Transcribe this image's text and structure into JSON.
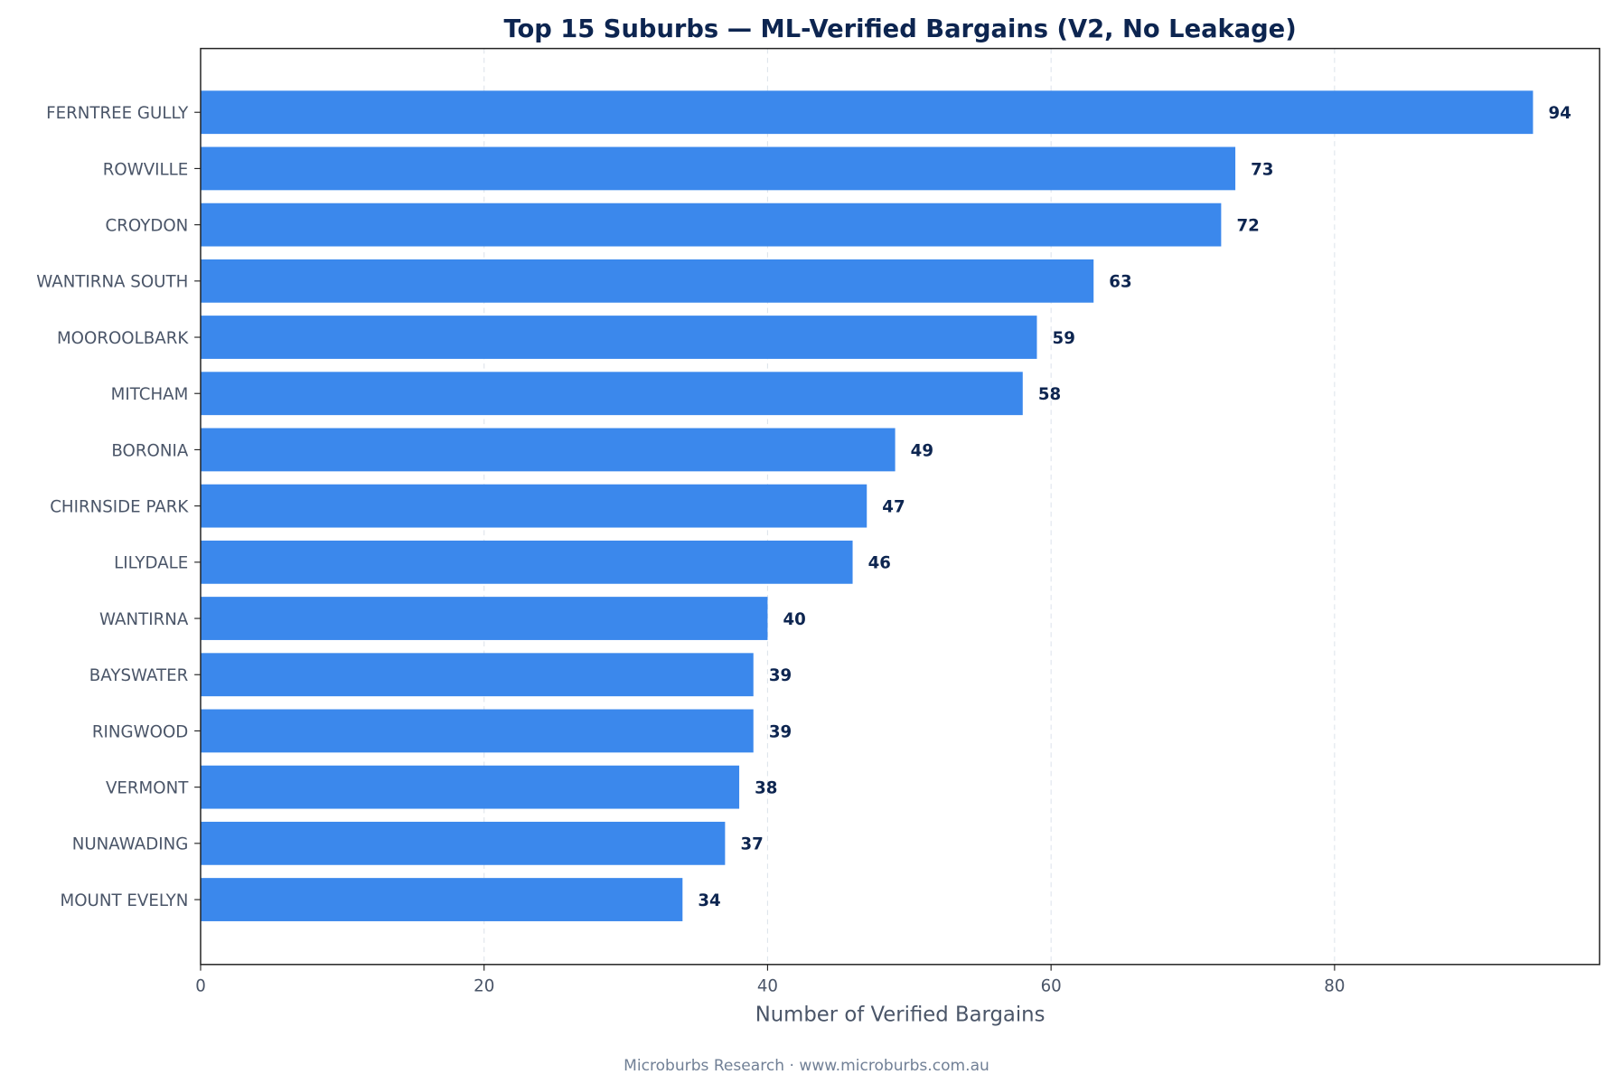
{
  "chart_data": {
    "type": "bar",
    "orientation": "horizontal",
    "title": "Top 15 Suburbs — ML-Verified Bargains (V2, No Leakage)",
    "xlabel": "Number of Verified Bargains",
    "ylabel": "",
    "categories": [
      "FERNTREE GULLY",
      "ROWVILLE",
      "CROYDON",
      "WANTIRNA SOUTH",
      "MOOROOLBARK",
      "MITCHAM",
      "BORONIA",
      "CHIRNSIDE PARK",
      "LILYDALE",
      "WANTIRNA",
      "BAYSWATER",
      "RINGWOOD",
      "VERMONT",
      "NUNAWADING",
      "MOUNT EVELYN"
    ],
    "values": [
      94,
      73,
      72,
      63,
      59,
      58,
      49,
      47,
      46,
      40,
      39,
      39,
      38,
      37,
      34
    ],
    "xlim": [
      0,
      98.7
    ],
    "xticks": [
      0,
      20,
      40,
      60,
      80
    ],
    "grid": "x, dashed",
    "data_labels": true,
    "colors": {
      "bar": "#3b88ec",
      "title": "#0d2550",
      "label": "#4a5568",
      "value": "#0d2550",
      "footer": "#718096"
    }
  },
  "footer": "Microburbs Research · www.microburbs.com.au"
}
